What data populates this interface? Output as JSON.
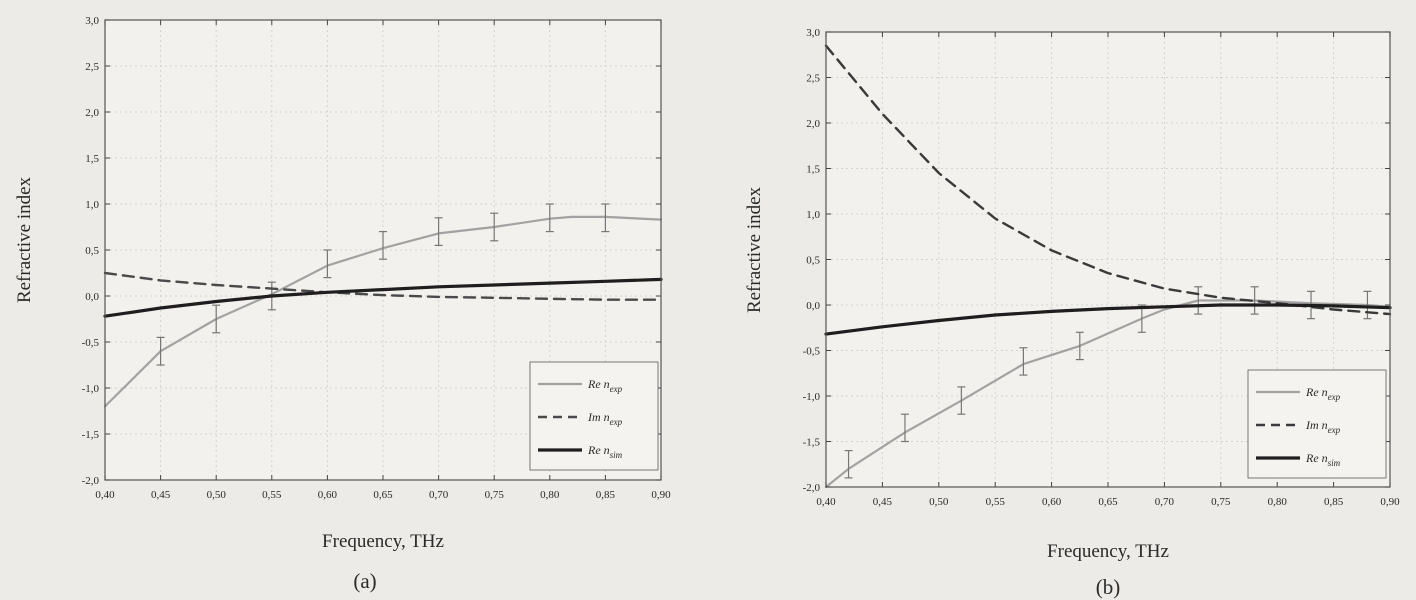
{
  "chart_data": [
    {
      "type": "line",
      "panel_label": "(a)",
      "xlabel": "Frequency, THz",
      "ylabel": "Refractive index",
      "xlim": [
        0.4,
        0.9
      ],
      "ylim": [
        -2.0,
        3.0
      ],
      "x_ticks": [
        "0,40",
        "0,45",
        "0,50",
        "0,55",
        "0,60",
        "0,65",
        "0,70",
        "0,75",
        "0,80",
        "0,85",
        "0,90"
      ],
      "y_ticks": [
        "3,0",
        "2,5",
        "2,0",
        "1,5",
        "1,0",
        "0,5",
        "0,0",
        "-0,5",
        "-1,0",
        "-1,5",
        "-2,0"
      ],
      "grid": true,
      "legend_position": "bottom-right",
      "series": [
        {
          "name": "Re n_exp",
          "legend_main": "Re n",
          "legend_sub": "exp",
          "color": "#a2a2a2",
          "style": "solid",
          "x": [
            0.4,
            0.45,
            0.5,
            0.55,
            0.6,
            0.65,
            0.7,
            0.75,
            0.8,
            0.82,
            0.85,
            0.9
          ],
          "y": [
            -1.2,
            -0.6,
            -0.25,
            0.02,
            0.33,
            0.52,
            0.68,
            0.75,
            0.84,
            0.86,
            0.86,
            0.83
          ],
          "error_x": [
            0.45,
            0.5,
            0.55,
            0.6,
            0.65,
            0.7,
            0.75,
            0.8,
            0.85
          ],
          "error_y": [
            -0.6,
            -0.25,
            0.0,
            0.35,
            0.55,
            0.7,
            0.75,
            0.85,
            0.85
          ],
          "error": 0.15
        },
        {
          "name": "Im n_exp",
          "legend_main": "Im n",
          "legend_sub": "exp",
          "color": "#4a4a4a",
          "style": "dashed",
          "x": [
            0.4,
            0.45,
            0.5,
            0.55,
            0.6,
            0.65,
            0.7,
            0.75,
            0.8,
            0.85,
            0.9
          ],
          "y": [
            0.25,
            0.17,
            0.12,
            0.08,
            0.04,
            0.01,
            -0.01,
            -0.02,
            -0.03,
            -0.04,
            -0.04
          ]
        },
        {
          "name": "Re n_sim",
          "legend_main": "Re n",
          "legend_sub": "sim",
          "color": "#1e1e1e",
          "style": "solid",
          "x": [
            0.4,
            0.45,
            0.5,
            0.55,
            0.6,
            0.65,
            0.7,
            0.75,
            0.8,
            0.85,
            0.9
          ],
          "y": [
            -0.22,
            -0.13,
            -0.06,
            0.0,
            0.04,
            0.07,
            0.1,
            0.12,
            0.14,
            0.16,
            0.18
          ]
        }
      ]
    },
    {
      "type": "line",
      "panel_label": "(b)",
      "xlabel": "Frequency, THz",
      "ylabel": "Refractive index",
      "xlim": [
        0.4,
        0.9
      ],
      "ylim": [
        -2.0,
        3.0
      ],
      "x_ticks": [
        "0,40",
        "0,45",
        "0,50",
        "0,55",
        "0,60",
        "0,65",
        "0,70",
        "0,75",
        "0,80",
        "0,85",
        "0,90"
      ],
      "y_ticks": [
        "3,0",
        "2,5",
        "2,0",
        "1,5",
        "1,0",
        "0,5",
        "0,0",
        "-0,5",
        "-1,0",
        "-1,5",
        "-2,0"
      ],
      "grid": true,
      "legend_position": "bottom-right",
      "series": [
        {
          "name": "Re n_exp",
          "legend_main": "Re n",
          "legend_sub": "exp",
          "color": "#a2a2a2",
          "style": "solid",
          "x": [
            0.4,
            0.42,
            0.47,
            0.52,
            0.575,
            0.625,
            0.68,
            0.7,
            0.73,
            0.78,
            0.83,
            0.88,
            0.9
          ],
          "y": [
            -2.0,
            -1.8,
            -1.4,
            -1.05,
            -0.65,
            -0.45,
            -0.15,
            -0.05,
            0.05,
            0.05,
            0.02,
            0.0,
            -0.02
          ],
          "error_x": [
            0.42,
            0.47,
            0.52,
            0.575,
            0.625,
            0.68,
            0.73,
            0.78,
            0.83,
            0.88
          ],
          "error_y": [
            -1.75,
            -1.35,
            -1.05,
            -0.62,
            -0.45,
            -0.15,
            0.05,
            0.05,
            0.0,
            0.0
          ],
          "error": 0.15
        },
        {
          "name": "Im n_exp",
          "legend_main": "Im n",
          "legend_sub": "exp",
          "color": "#3a3a3a",
          "style": "dashed",
          "x": [
            0.4,
            0.45,
            0.5,
            0.55,
            0.6,
            0.65,
            0.7,
            0.75,
            0.8,
            0.85,
            0.9
          ],
          "y": [
            2.85,
            2.1,
            1.45,
            0.95,
            0.6,
            0.35,
            0.18,
            0.08,
            0.02,
            -0.05,
            -0.1
          ]
        },
        {
          "name": "Re n_sim",
          "legend_main": "Re n",
          "legend_sub": "sim",
          "color": "#1e1e1e",
          "style": "solid",
          "x": [
            0.4,
            0.45,
            0.5,
            0.55,
            0.6,
            0.65,
            0.7,
            0.75,
            0.8,
            0.85,
            0.9
          ],
          "y": [
            -0.32,
            -0.24,
            -0.17,
            -0.11,
            -0.07,
            -0.04,
            -0.02,
            0.0,
            0.0,
            -0.01,
            -0.03
          ]
        }
      ]
    }
  ]
}
